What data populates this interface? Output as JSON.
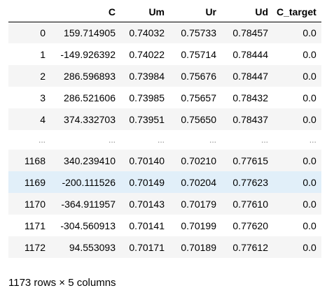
{
  "dataframe": {
    "columns": [
      "",
      "C",
      "Um",
      "Ur",
      "Ud",
      "C_target"
    ],
    "rows": [
      [
        "0",
        "159.714905",
        "0.74032",
        "0.75733",
        "0.78457",
        "0.0"
      ],
      [
        "1",
        "-149.926392",
        "0.74022",
        "0.75714",
        "0.78444",
        "0.0"
      ],
      [
        "2",
        "286.596893",
        "0.73984",
        "0.75676",
        "0.78447",
        "0.0"
      ],
      [
        "3",
        "286.521606",
        "0.73985",
        "0.75657",
        "0.78432",
        "0.0"
      ],
      [
        "4",
        "374.332703",
        "0.73951",
        "0.75650",
        "0.78437",
        "0.0"
      ],
      [
        "...",
        "...",
        "...",
        "...",
        "...",
        "..."
      ],
      [
        "1168",
        "340.239410",
        "0.70140",
        "0.70210",
        "0.77615",
        "0.0"
      ],
      [
        "1169",
        "-200.111526",
        "0.70149",
        "0.70204",
        "0.77623",
        "0.0"
      ],
      [
        "1170",
        "-364.911957",
        "0.70143",
        "0.70179",
        "0.77610",
        "0.0"
      ],
      [
        "1171",
        "-304.560913",
        "0.70141",
        "0.70199",
        "0.77620",
        "0.0"
      ],
      [
        "1172",
        "94.553093",
        "0.70171",
        "0.70189",
        "0.77612",
        "0.0"
      ]
    ],
    "hovered_row": 7,
    "ellipsis_row": 5,
    "row_stripe_color": "#f5f5f5",
    "hover_color": "#e1eff9"
  },
  "shape_caption": "1173 rows × 5 columns"
}
